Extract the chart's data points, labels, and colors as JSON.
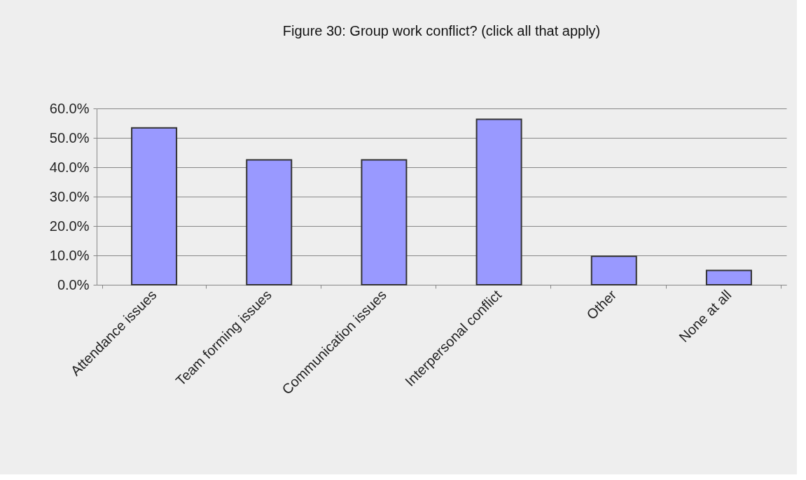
{
  "chart_data": {
    "type": "bar",
    "title": "Figure 30:  Group work conflict?  (click all that apply)",
    "categories": [
      "Attendance issues",
      "Team forming issues",
      "Communication issues",
      "Interpersonal conflict",
      "Other",
      "None at all"
    ],
    "values": [
      53.4,
      42.5,
      42.5,
      56.3,
      9.7,
      4.9
    ],
    "color": "#9999ff",
    "ylim": [
      0,
      60
    ],
    "yticks": [
      {
        "value": 0,
        "label": "0.0%"
      },
      {
        "value": 10,
        "label": "10.0%"
      },
      {
        "value": 20,
        "label": "20.0%"
      },
      {
        "value": 30,
        "label": "30.0%"
      },
      {
        "value": 40,
        "label": "40.0%"
      },
      {
        "value": 50,
        "label": "50.0%"
      },
      {
        "value": 60,
        "label": "60.0%"
      }
    ],
    "grid": "y"
  }
}
